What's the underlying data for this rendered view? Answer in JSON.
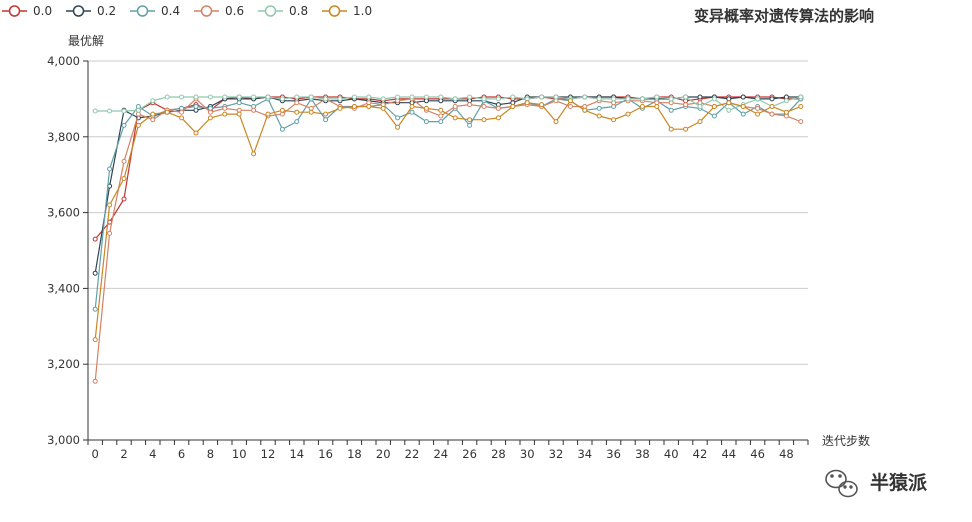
{
  "watermark": {
    "text": "半猿派",
    "icon": "wechat-icon"
  },
  "chart_data": {
    "type": "line",
    "title": "变异概率对遗传算法的影响",
    "xlabel": "迭代步数",
    "ylabel": "最优解",
    "xlim": [
      0,
      50
    ],
    "ylim": [
      3000,
      4000
    ],
    "yticks": [
      3000,
      3200,
      3400,
      3600,
      3800,
      4000
    ],
    "ytick_labels": [
      "3,000",
      "3,200",
      "3,400",
      "3,600",
      "3,800",
      "4,000"
    ],
    "xticks": [
      0,
      2,
      4,
      6,
      8,
      10,
      12,
      14,
      16,
      18,
      20,
      22,
      24,
      26,
      28,
      30,
      32,
      34,
      36,
      38,
      40,
      42,
      44,
      46,
      48
    ],
    "xtick_labels": [
      "0",
      "2",
      "4",
      "6",
      "8",
      "10",
      "12",
      "14",
      "16",
      "18",
      "20",
      "22",
      "24",
      "26",
      "28",
      "30",
      "32",
      "34",
      "36",
      "38",
      "40",
      "42",
      "44",
      "46",
      "48"
    ],
    "grid": true,
    "legend": "top-left",
    "x": [
      0,
      1,
      2,
      3,
      4,
      5,
      6,
      7,
      8,
      9,
      10,
      11,
      12,
      13,
      14,
      15,
      16,
      17,
      18,
      19,
      20,
      21,
      22,
      23,
      24,
      25,
      26,
      27,
      28,
      29,
      30,
      31,
      32,
      33,
      34,
      35,
      36,
      37,
      38,
      39,
      40,
      41,
      42,
      43,
      44,
      45,
      46,
      47,
      48,
      49
    ],
    "series": [
      {
        "name": "0.0",
        "color": "#c23531",
        "values": [
          3530,
          3575,
          3636,
          3870,
          3890,
          3870,
          3875,
          3885,
          3870,
          3900,
          3905,
          3900,
          3905,
          3905,
          3900,
          3905,
          3905,
          3905,
          3900,
          3900,
          3895,
          3900,
          3900,
          3900,
          3900,
          3900,
          3900,
          3905,
          3905,
          3900,
          3900,
          3905,
          3900,
          3900,
          3905,
          3905,
          3905,
          3905,
          3900,
          3905,
          3905,
          3895,
          3900,
          3905,
          3905,
          3905,
          3905,
          3905,
          3900,
          3900
        ]
      },
      {
        "name": "0.2",
        "color": "#2f4554",
        "values": [
          3440,
          3670,
          3870,
          3850,
          3855,
          3865,
          3870,
          3870,
          3880,
          3900,
          3900,
          3900,
          3905,
          3895,
          3895,
          3900,
          3895,
          3895,
          3900,
          3895,
          3890,
          3890,
          3890,
          3895,
          3895,
          3895,
          3895,
          3895,
          3885,
          3890,
          3905,
          3905,
          3905,
          3905,
          3905,
          3905,
          3905,
          3900,
          3900,
          3900,
          3900,
          3905,
          3905,
          3905,
          3900,
          3905,
          3900,
          3900,
          3905,
          3905
        ]
      },
      {
        "name": "0.4",
        "color": "#61a0a8",
        "values": [
          3345,
          3715,
          3830,
          3880,
          3855,
          3870,
          3875,
          3880,
          3875,
          3880,
          3890,
          3880,
          3900,
          3820,
          3840,
          3900,
          3845,
          3880,
          3880,
          3880,
          3885,
          3850,
          3865,
          3840,
          3840,
          3875,
          3830,
          3895,
          3875,
          3880,
          3890,
          3880,
          3900,
          3895,
          3870,
          3875,
          3880,
          3900,
          3875,
          3895,
          3870,
          3880,
          3875,
          3855,
          3890,
          3860,
          3880,
          3860,
          3860,
          3900
        ]
      },
      {
        "name": "0.6",
        "color": "#d48265",
        "values": [
          3155,
          3545,
          3735,
          3860,
          3845,
          3870,
          3865,
          3900,
          3865,
          3875,
          3870,
          3870,
          3855,
          3860,
          3890,
          3875,
          3900,
          3880,
          3875,
          3890,
          3885,
          3895,
          3900,
          3870,
          3855,
          3880,
          3885,
          3880,
          3875,
          3880,
          3885,
          3880,
          3895,
          3880,
          3880,
          3895,
          3890,
          3895,
          3895,
          3890,
          3890,
          3885,
          3890,
          3880,
          3890,
          3880,
          3875,
          3860,
          3855,
          3840
        ]
      },
      {
        "name": "0.8",
        "color": "#91c7ae",
        "values": [
          3868,
          3868,
          3868,
          3870,
          3895,
          3905,
          3905,
          3905,
          3905,
          3905,
          3905,
          3905,
          3905,
          3900,
          3905,
          3905,
          3900,
          3900,
          3905,
          3905,
          3900,
          3905,
          3905,
          3905,
          3905,
          3900,
          3905,
          3900,
          3900,
          3905,
          3900,
          3905,
          3905,
          3900,
          3905,
          3900,
          3900,
          3900,
          3900,
          3905,
          3900,
          3905,
          3880,
          3900,
          3870,
          3885,
          3900,
          3880,
          3895,
          3905
        ]
      },
      {
        "name": "1.0",
        "color": "#ca8622",
        "values": [
          3265,
          3620,
          3690,
          3830,
          3860,
          3865,
          3850,
          3810,
          3850,
          3860,
          3860,
          3755,
          3860,
          3870,
          3865,
          3865,
          3860,
          3875,
          3880,
          3880,
          3875,
          3825,
          3880,
          3875,
          3870,
          3850,
          3845,
          3845,
          3850,
          3880,
          3890,
          3885,
          3840,
          3895,
          3870,
          3855,
          3845,
          3860,
          3880,
          3880,
          3820,
          3820,
          3840,
          3880,
          3890,
          3880,
          3860,
          3880,
          3865,
          3880
        ]
      }
    ]
  }
}
